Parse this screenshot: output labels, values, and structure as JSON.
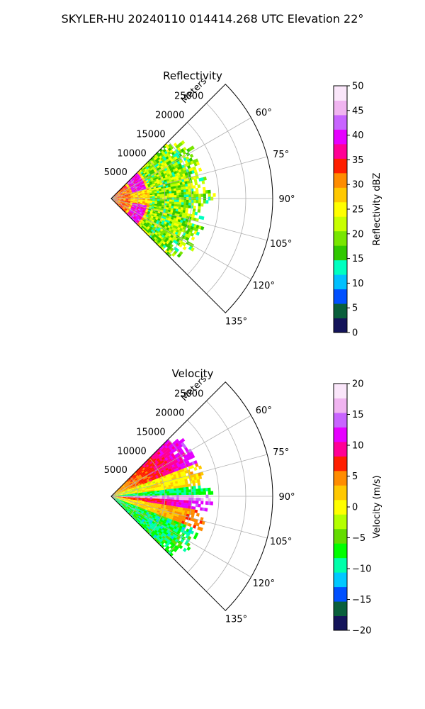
{
  "suptitle": "SKYLER-HU  20240110  014414.268 UTC Elevation 22°",
  "chart_data": [
    {
      "type": "polar-sector (PPI radar)",
      "title": "Reflectivity",
      "range_label": "Meters",
      "r_ticks": [
        5000,
        10000,
        15000,
        20000,
        25000
      ],
      "r_tick_labels": [
        "5000",
        "10000",
        "15000",
        "20000",
        "25000"
      ],
      "r_max": 30000,
      "theta_range_deg": [
        45,
        135
      ],
      "theta_ticks": [
        60,
        75,
        90,
        105,
        120,
        135
      ],
      "theta_tick_labels": [
        "60°",
        "75°",
        "90°",
        "105°",
        "120°",
        "135°"
      ],
      "grid": true,
      "data_extent_m": 17000,
      "colorbar": {
        "label": "Reflectivity dBZ",
        "vmin": 0,
        "vmax": 50,
        "ticks": [
          0,
          5,
          10,
          15,
          20,
          25,
          30,
          35,
          40,
          45,
          50
        ],
        "tick_labels": [
          "0",
          "5",
          "10",
          "15",
          "20",
          "25",
          "30",
          "35",
          "40",
          "45",
          "50"
        ],
        "colors": [
          "#14145a",
          "#0a5f3c",
          "#0050ff",
          "#00c0ff",
          "#00ffc0",
          "#30c800",
          "#78e600",
          "#c8ff00",
          "#ffff00",
          "#ffc800",
          "#ff8c00",
          "#ff1e00",
          "#ff0096",
          "#e600ff",
          "#c864ff",
          "#f0b4f0",
          "#fae6fa"
        ]
      },
      "approx_values": [
        {
          "range_m": [
            0,
            3500
          ],
          "value": 32
        },
        {
          "range_m": [
            3500,
            7000
          ],
          "value": 38
        },
        {
          "range_m": [
            7000,
            17000
          ],
          "value": 20
        }
      ]
    },
    {
      "type": "polar-sector (PPI radar)",
      "title": "Velocity",
      "range_label": "Meters",
      "r_ticks": [
        5000,
        10000,
        15000,
        20000,
        25000
      ],
      "r_tick_labels": [
        "5000",
        "10000",
        "15000",
        "20000",
        "25000"
      ],
      "r_max": 30000,
      "theta_range_deg": [
        45,
        135
      ],
      "theta_ticks": [
        60,
        75,
        90,
        105,
        120,
        135
      ],
      "theta_tick_labels": [
        "60°",
        "75°",
        "90°",
        "105°",
        "120°",
        "135°"
      ],
      "grid": true,
      "data_extent_m": 17000,
      "colorbar": {
        "label": "Velocity (m/s)",
        "vmin": -20,
        "vmax": 20,
        "ticks": [
          -20,
          -15,
          -10,
          -5,
          0,
          5,
          10,
          15,
          20
        ],
        "tick_labels": [
          "−20",
          "−15",
          "−10",
          "−5",
          "0",
          "5",
          "10",
          "15",
          "20"
        ],
        "colors": [
          "#14145a",
          "#0a5f3c",
          "#0050ff",
          "#00c8ff",
          "#00ffaa",
          "#00ff00",
          "#64dc00",
          "#b4ff00",
          "#ffff00",
          "#ffc800",
          "#ff8c00",
          "#ff1e00",
          "#ff0096",
          "#e600ff",
          "#c864ff",
          "#f0b4f0",
          "#fae6fa"
        ]
      },
      "approx_values": [
        {
          "azimuth_deg": [
            45,
            70
          ],
          "value": 8
        },
        {
          "azimuth_deg": [
            70,
            88
          ],
          "value": 0
        },
        {
          "azimuth_deg": [
            88,
            92
          ],
          "value": -10
        },
        {
          "azimuth_deg": [
            92,
            100
          ],
          "value": 15
        },
        {
          "azimuth_deg": [
            100,
            110
          ],
          "value": 5
        },
        {
          "azimuth_deg": [
            110,
            130
          ],
          "value": -8
        }
      ]
    }
  ]
}
